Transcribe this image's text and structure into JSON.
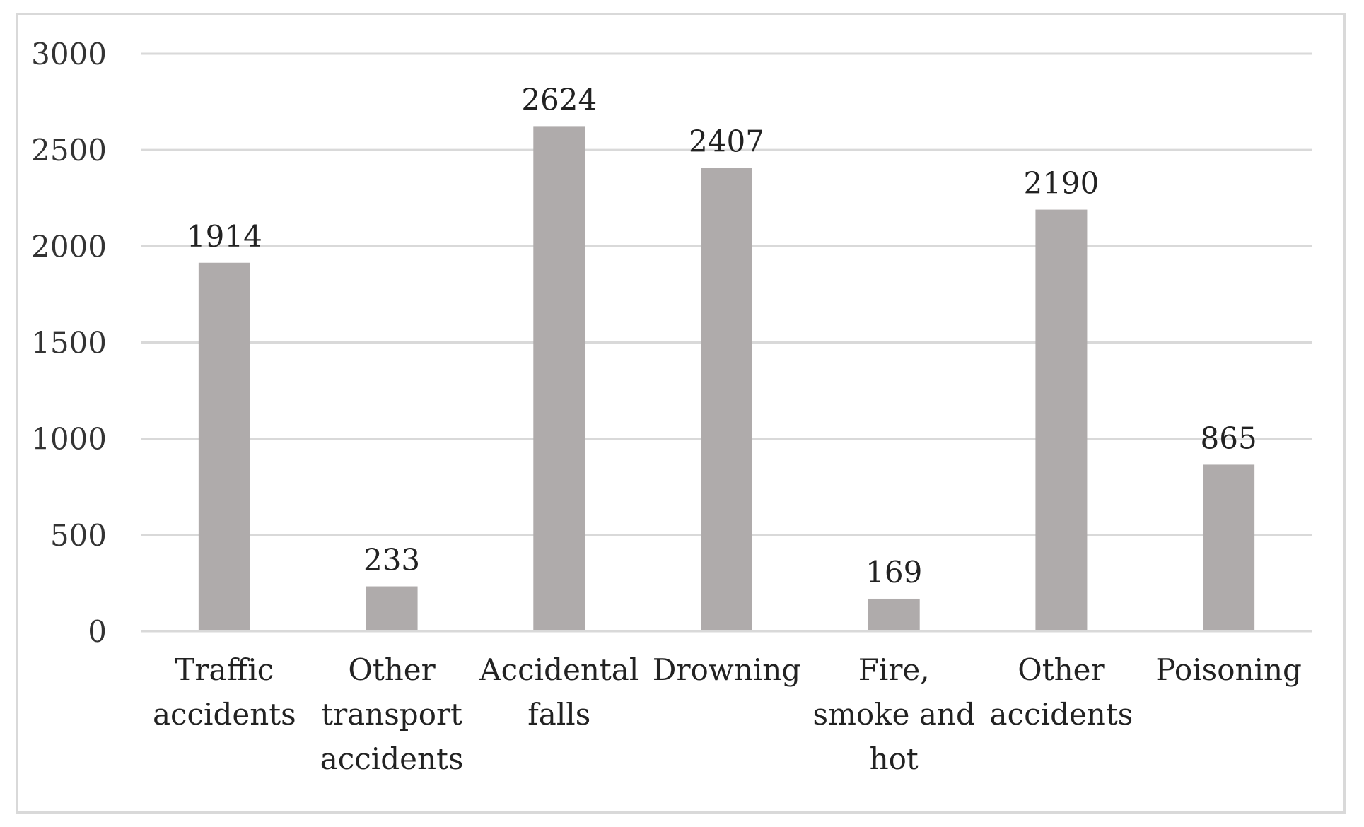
{
  "chart_data": {
    "type": "bar",
    "title": "",
    "xlabel": "",
    "ylabel": "",
    "categories": [
      [
        "Traffic",
        "accidents"
      ],
      [
        "Other",
        "transport",
        "accidents"
      ],
      [
        "Accidental",
        "falls"
      ],
      [
        "Drowning"
      ],
      [
        "Fire,",
        "smoke and",
        "hot"
      ],
      [
        "Other",
        "accidents"
      ],
      [
        "Poisoning"
      ]
    ],
    "values": [
      1914,
      233,
      2624,
      2407,
      169,
      2190,
      865
    ],
    "data_labels": [
      "1914",
      "233",
      "2624",
      "2407",
      "169",
      "2190",
      "865"
    ],
    "ylim": [
      0,
      3000
    ],
    "yticks": [
      0,
      500,
      1000,
      1500,
      2000,
      2500,
      3000
    ],
    "ytick_labels": [
      "0",
      "500",
      "1000",
      "1500",
      "2000",
      "2500",
      "3000"
    ],
    "grid": true,
    "legend": "none",
    "colors": {
      "bar": "#afabab",
      "grid": "#d9d9d9",
      "axis": "#d9d9d9"
    }
  }
}
